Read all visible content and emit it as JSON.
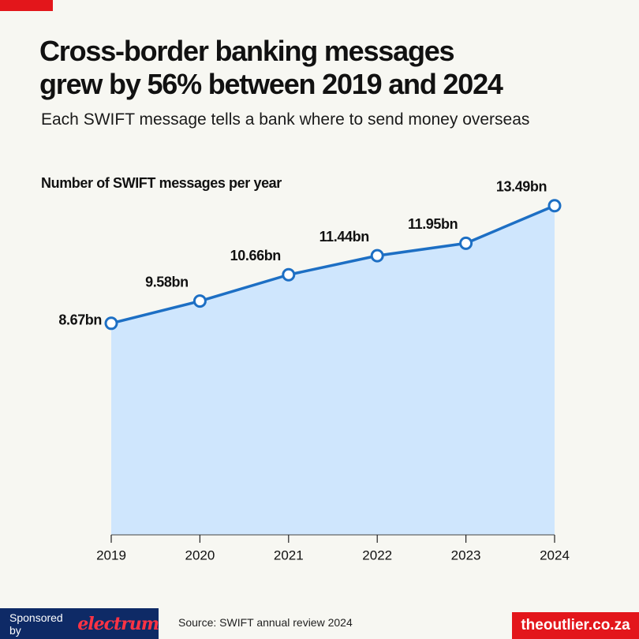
{
  "chart_data": {
    "type": "area",
    "title": [
      "Cross-border banking messages",
      "grew by 56% between 2019 and 2024"
    ],
    "subtitle": "Each SWIFT message tells a bank where to send money overseas",
    "y_label": "Number of SWIFT messages per year",
    "categories": [
      "2019",
      "2020",
      "2021",
      "2022",
      "2023",
      "2024"
    ],
    "values": [
      8.67,
      9.58,
      10.66,
      11.44,
      11.95,
      13.49
    ],
    "value_labels": [
      "8.67bn",
      "9.58bn",
      "10.66bn",
      "11.44bn",
      "11.95bn",
      "13.49bn"
    ],
    "color": "#1d6fc4",
    "fill_color": "#cfe6fd",
    "ylim": [
      0,
      15
    ],
    "source": "Source: SWIFT annual review 2024",
    "sponsor_text": "Sponsored by",
    "sponsor_name": "electrum",
    "site": "theoutlier.co.za"
  }
}
